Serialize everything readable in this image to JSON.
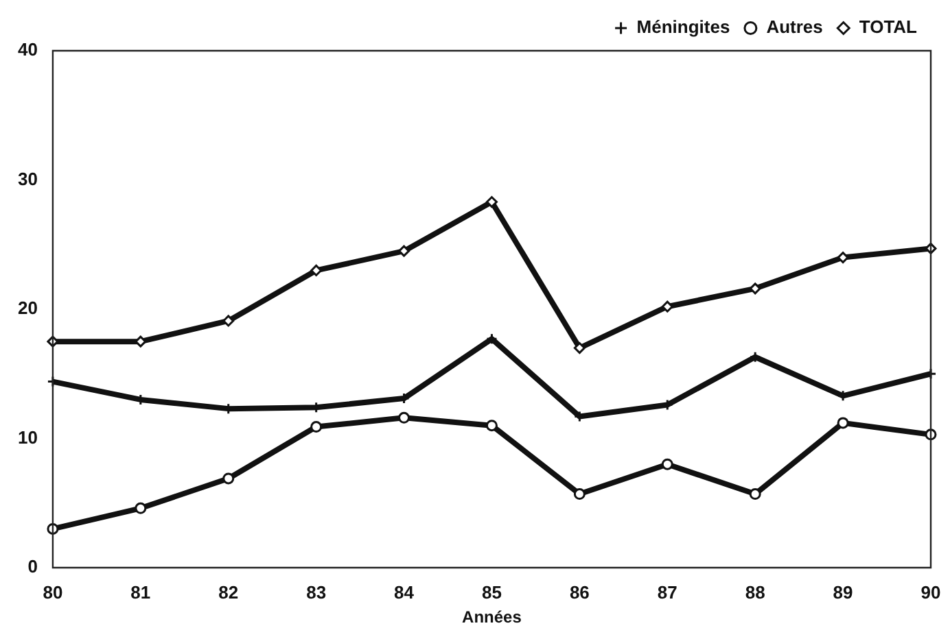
{
  "chart_data": {
    "type": "line",
    "xlabel": "Années",
    "categories": [
      "80",
      "81",
      "82",
      "83",
      "84",
      "85",
      "86",
      "87",
      "88",
      "89",
      "90"
    ],
    "ylim": [
      0,
      40
    ],
    "yticks": [
      0,
      10,
      20,
      30,
      40
    ],
    "grid": false,
    "legend": "top right",
    "series": [
      {
        "name": "Méningites",
        "color": "#111111",
        "marker": "cross",
        "values": [
          14.4,
          13.0,
          12.3,
          12.4,
          13.1,
          17.7,
          11.7,
          12.6,
          16.3,
          13.3,
          15.0
        ]
      },
      {
        "name": "Autres",
        "color": "#111111",
        "marker": "circle",
        "values": [
          3.0,
          4.6,
          6.9,
          10.9,
          11.6,
          11.0,
          5.7,
          8.0,
          5.7,
          11.2,
          10.3
        ]
      },
      {
        "name": "TOTAL",
        "color": "#111111",
        "marker": "diamond",
        "values": [
          17.5,
          17.5,
          19.1,
          23.0,
          24.5,
          28.3,
          17.0,
          20.2,
          21.6,
          24.0,
          24.7
        ]
      }
    ]
  }
}
